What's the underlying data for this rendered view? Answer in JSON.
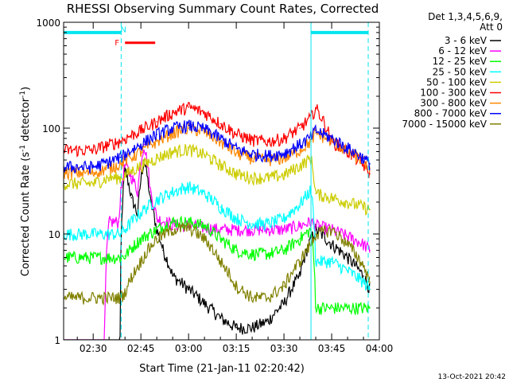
{
  "chart_data": {
    "type": "line",
    "title": "RHESSI Observing Summary Count Rates, Corrected",
    "xlabel": "Start Time (21-Jan-11 02:20:42)",
    "ylabel_main": "Corrected Count Rate (s",
    "ylabel_sup1": "-1",
    "ylabel_mid": " detector",
    "ylabel_sup2": "-1",
    "ylabel_end": ")",
    "y_scale": "log",
    "ylim": [
      1,
      1000
    ],
    "xlim_minutes": [
      20.7,
      120
    ],
    "xtick_minutes": [
      30,
      45,
      60,
      75,
      90,
      105,
      120
    ],
    "xtick_labels": [
      "02:30",
      "02:45",
      "03:00",
      "03:15",
      "03:30",
      "03:45",
      "04:00"
    ],
    "ytick_values": [
      1,
      10,
      100,
      1000
    ],
    "ytick_labels": [
      "1",
      "10",
      "100",
      "1000"
    ],
    "legend_header_line1": "Det 1,3,4,5,6,9,",
    "legend_header_line2": "Att 0",
    "legend_placement": "right",
    "footer_timestamp": "13-Oct-2021 20:42",
    "night_bars": [
      {
        "from": 20.7,
        "to": 38.8,
        "y": 800,
        "color": "#00e5ee"
      },
      {
        "from": 98.5,
        "to": 116.5,
        "y": 800,
        "color": "#00e5ee"
      }
    ],
    "vertical_markers": [
      {
        "x": 38.8,
        "style": "dashed"
      },
      {
        "x": 98.5,
        "style": "solid"
      },
      {
        "x": 116.5,
        "style": "dashed"
      }
    ],
    "flags": [
      {
        "label": "F",
        "from": 37.5,
        "to": 37.5,
        "y": 650,
        "color": "#ff0000"
      },
      {
        "label": "N",
        "from": 39.5,
        "to": 39.5,
        "y": 860,
        "color": "#00e5ee"
      },
      {
        "label": "",
        "from": 40.0,
        "to": 49.5,
        "y": 640,
        "color": "#ff0000"
      }
    ],
    "series": [
      {
        "name": "3 - 6 keV",
        "color": "#000000",
        "x": [
          20.7,
          37.5,
          38.5,
          40,
          42,
          44,
          46,
          48,
          50,
          52,
          55,
          60,
          65,
          70,
          75,
          80,
          85,
          90,
          95,
          100,
          105,
          110,
          115,
          117
        ],
        "y": [
          0,
          0,
          1.0,
          40,
          22,
          15,
          50,
          20,
          11,
          7,
          4,
          3,
          2.2,
          1.6,
          1.3,
          1.3,
          1.5,
          2.2,
          4,
          11,
          8,
          6,
          4,
          3
        ]
      },
      {
        "name": "6 - 12 keV",
        "color": "#ff00ff",
        "x": [
          20.7,
          33.5,
          35,
          38,
          40,
          42,
          44,
          46,
          48,
          50,
          53,
          56,
          60,
          65,
          70,
          75,
          80,
          85,
          90,
          95,
          98.5,
          100,
          105,
          110,
          115,
          117
        ],
        "y": [
          0,
          0,
          13,
          13,
          45,
          35,
          25,
          70,
          25,
          14,
          13,
          12,
          12,
          11.5,
          11,
          11,
          11,
          11,
          11,
          12,
          13,
          12,
          11,
          9.5,
          8,
          7
        ]
      },
      {
        "name": "12 - 25 keV",
        "color": "#00ff00",
        "x": [
          20.7,
          38.5,
          40,
          45,
          50,
          55,
          60,
          65,
          70,
          75,
          80,
          85,
          90,
          95,
          98.5,
          100,
          105,
          110,
          115,
          117
        ],
        "y": [
          6,
          6,
          6.2,
          9,
          11,
          13,
          13,
          12,
          9,
          7,
          6.5,
          6.5,
          7,
          9,
          11,
          2,
          2,
          2,
          2,
          2
        ]
      },
      {
        "name": "25 - 50 keV",
        "color": "#00ffff",
        "x": [
          20.7,
          38.5,
          40,
          45,
          50,
          55,
          60,
          65,
          70,
          75,
          80,
          85,
          90,
          95,
          98.5,
          100,
          105,
          110,
          115,
          117
        ],
        "y": [
          10,
          10,
          11,
          16,
          21,
          25,
          28,
          24,
          18,
          14,
          12.5,
          12.5,
          14,
          19,
          26,
          5.5,
          5.5,
          4.5,
          3.5,
          3.0
        ]
      },
      {
        "name": "50 - 100 keV",
        "color": "#cccc00",
        "x": [
          20.7,
          30,
          35,
          38.5,
          40,
          45,
          50,
          55,
          60,
          65,
          70,
          75,
          80,
          85,
          90,
          95,
          98.5,
          100,
          105,
          110,
          115,
          117
        ],
        "y": [
          30,
          30,
          34,
          34,
          36,
          44,
          52,
          60,
          63,
          56,
          45,
          37,
          34,
          34,
          36,
          44,
          52,
          24,
          22,
          20,
          18,
          17
        ]
      },
      {
        "name": "100 - 300 keV",
        "color": "#ff0000",
        "x": [
          20.7,
          30,
          35,
          38.5,
          45,
          50,
          55,
          60,
          65,
          70,
          75,
          80,
          85,
          90,
          95,
          98.5,
          100,
          105,
          110,
          115,
          117
        ],
        "y": [
          62,
          62,
          70,
          75,
          95,
          115,
          140,
          158,
          140,
          110,
          88,
          77,
          75,
          80,
          100,
          125,
          155,
          75,
          60,
          45,
          37
        ]
      },
      {
        "name": "300 - 800 keV",
        "color": "#ff8800",
        "x": [
          20.7,
          30,
          35,
          38.5,
          45,
          50,
          55,
          60,
          65,
          70,
          75,
          80,
          85,
          90,
          95,
          98.5,
          100,
          105,
          110,
          115,
          117
        ],
        "y": [
          38,
          38,
          42,
          46,
          60,
          75,
          90,
          100,
          92,
          74,
          58,
          52,
          50,
          52,
          62,
          75,
          90,
          75,
          60,
          48,
          42
        ]
      },
      {
        "name": "800 - 7000 keV",
        "color": "#0000ff",
        "x": [
          20.7,
          30,
          35,
          38.5,
          45,
          50,
          55,
          60,
          65,
          70,
          75,
          80,
          85,
          90,
          95,
          98.5,
          100,
          105,
          110,
          115,
          117
        ],
        "y": [
          43,
          43,
          48,
          53,
          70,
          87,
          100,
          106,
          98,
          80,
          64,
          57,
          55,
          58,
          70,
          82,
          95,
          80,
          65,
          52,
          46
        ]
      },
      {
        "name": "7000 - 15000 keV",
        "color": "#808000",
        "x": [
          20.7,
          38.5,
          40,
          45,
          50,
          55,
          60,
          65,
          70,
          75,
          80,
          85,
          90,
          95,
          98.5,
          100,
          105,
          110,
          115,
          117
        ],
        "y": [
          2.5,
          2.5,
          2.8,
          5.5,
          9,
          11,
          11.5,
          9,
          5.5,
          3.2,
          2.5,
          2.5,
          3.2,
          5.5,
          8,
          10,
          11,
          8,
          5,
          3.5
        ]
      }
    ]
  }
}
